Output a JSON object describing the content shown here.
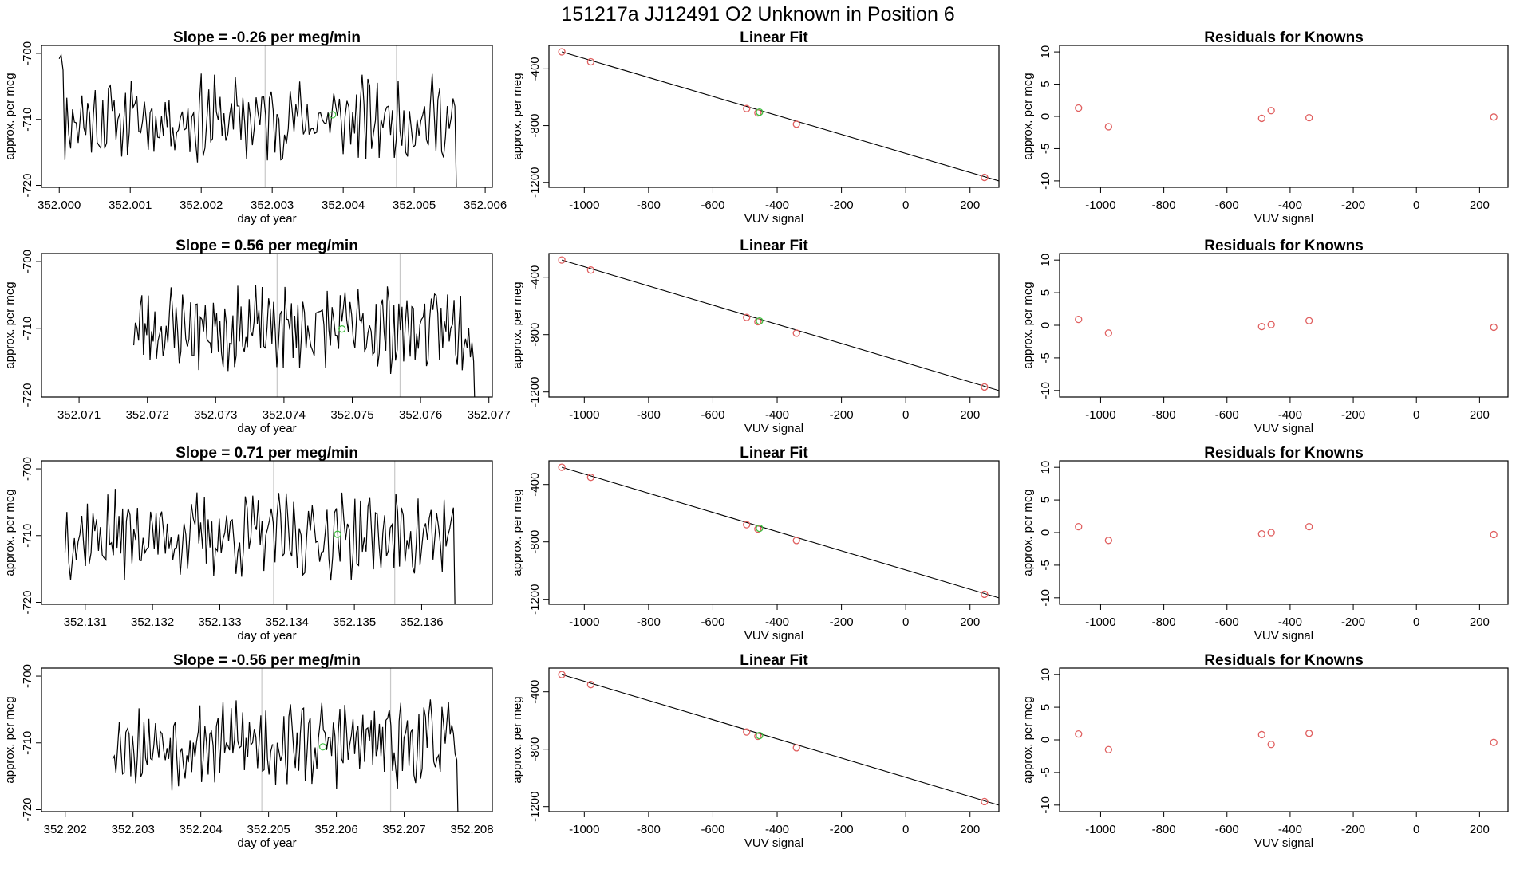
{
  "title": "151217a      JJ12491    O2 Unknown in Position  6",
  "colors": {
    "line": "#000000",
    "marker": "#e06060",
    "highlight": "#40c040",
    "guide": "#c8c8c8"
  },
  "chart_data": [
    {
      "type": "line",
      "title": "Slope =  -0.26  per meg/min",
      "xlabel": "day of year",
      "ylabel": "approx. per meg",
      "xlim": [
        351.99975,
        352.0061
      ],
      "ylim": [
        -720.3,
        -698.8
      ],
      "xticks": [
        352.0,
        352.001,
        352.002,
        352.003,
        352.004,
        352.005,
        352.006
      ],
      "xtick_labels": [
        "352.000",
        "352.001",
        "352.002",
        "352.003",
        "352.004",
        "352.005",
        "352.006"
      ],
      "yticks": [
        -720,
        -710,
        -700
      ],
      "ytick_labels": [
        "-720",
        "-710",
        "-700"
      ],
      "series_start": 352.0,
      "series_end": 352.0056,
      "vlines": [
        352.0029,
        352.00475
      ],
      "highlight": {
        "x": 352.00385,
        "y": -709.3
      },
      "seed": 11
    },
    {
      "type": "line",
      "title": "Slope =  0.56  per meg/min",
      "xlabel": "day of year",
      "ylabel": "approx. per meg",
      "xlim": [
        352.07045,
        352.07705
      ],
      "ylim": [
        -720.3,
        -698.8
      ],
      "xticks": [
        352.071,
        352.072,
        352.073,
        352.074,
        352.075,
        352.076,
        352.077
      ],
      "xtick_labels": [
        "352.071",
        "352.072",
        "352.073",
        "352.074",
        "352.075",
        "352.076",
        "352.077"
      ],
      "yticks": [
        -720,
        -710,
        -700
      ],
      "ytick_labels": [
        "-720",
        "-710",
        "-700"
      ],
      "series_start": 352.0718,
      "series_end": 352.0768,
      "vlines": [
        352.0739,
        352.0757
      ],
      "highlight": {
        "x": 352.07485,
        "y": -710.1
      },
      "seed": 23
    },
    {
      "type": "line",
      "title": "Slope =  0.71  per meg/min",
      "xlabel": "day of year",
      "ylabel": "approx. per meg",
      "xlim": [
        352.13035,
        352.13705
      ],
      "ylim": [
        -720.3,
        -698.8
      ],
      "xticks": [
        352.131,
        352.132,
        352.133,
        352.134,
        352.135,
        352.136
      ],
      "xtick_labels": [
        "352.131",
        "352.132",
        "352.133",
        "352.134",
        "352.135",
        "352.136"
      ],
      "yticks": [
        -720,
        -710,
        -700
      ],
      "ytick_labels": [
        "-720",
        "-710",
        "-700"
      ],
      "series_start": 352.1307,
      "series_end": 352.1365,
      "vlines": [
        352.1338,
        352.1356
      ],
      "highlight": {
        "x": 352.13475,
        "y": -709.8
      },
      "seed": 37
    },
    {
      "type": "line",
      "title": "Slope =  -0.56  per meg/min",
      "xlabel": "day of year",
      "ylabel": "approx. per meg",
      "xlim": [
        352.20165,
        352.2083
      ],
      "ylim": [
        -720.3,
        -698.8
      ],
      "xticks": [
        352.202,
        352.203,
        352.204,
        352.205,
        352.206,
        352.207,
        352.208
      ],
      "xtick_labels": [
        "352.202",
        "352.203",
        "352.204",
        "352.205",
        "352.206",
        "352.207",
        "352.208"
      ],
      "yticks": [
        -720,
        -710,
        -700
      ],
      "ytick_labels": [
        "-720",
        "-710",
        "-700"
      ],
      "series_start": 352.2027,
      "series_end": 352.2078,
      "vlines": [
        352.2049,
        352.2068
      ],
      "highlight": {
        "x": 352.2058,
        "y": -710.6
      },
      "seed": 53
    },
    {
      "type": "scatter",
      "title": "Linear Fit",
      "xlabel": "VUV signal",
      "ylabel": "approx. per meg",
      "xlim": [
        -1110,
        290
      ],
      "ylim": [
        -1235,
        -235
      ],
      "xticks": [
        -1000,
        -800,
        -600,
        -400,
        -200,
        0,
        200
      ],
      "xtick_labels": [
        "-1000",
        "-800",
        "-600",
        "-400",
        "-200",
        "0",
        "200"
      ],
      "yticks": [
        -1200,
        -800,
        -400
      ],
      "ytick_labels": [
        "-1200",
        "-800",
        "-400"
      ],
      "points": [
        {
          "x": -1070,
          "y": -280
        },
        {
          "x": -980,
          "y": -350
        },
        {
          "x": -495,
          "y": -680
        },
        {
          "x": -460,
          "y": -710
        },
        {
          "x": -340,
          "y": -790
        },
        {
          "x": 245,
          "y": -1165
        }
      ],
      "highlight": {
        "x": -455,
        "y": -705
      },
      "fit": {
        "x": [
          -1070,
          290
        ],
        "y": [
          -280,
          -1190
        ]
      }
    },
    {
      "type": "scatter",
      "title": "Linear Fit",
      "xlabel": "VUV signal",
      "ylabel": "approx. per meg",
      "xlim": [
        -1110,
        290
      ],
      "ylim": [
        -1235,
        -235
      ],
      "xticks": [
        -1000,
        -800,
        -600,
        -400,
        -200,
        0,
        200
      ],
      "xtick_labels": [
        "-1000",
        "-800",
        "-600",
        "-400",
        "-200",
        "0",
        "200"
      ],
      "yticks": [
        -1200,
        -800,
        -400
      ],
      "ytick_labels": [
        "-1200",
        "-800",
        "-400"
      ],
      "points": [
        {
          "x": -1070,
          "y": -280
        },
        {
          "x": -980,
          "y": -350
        },
        {
          "x": -495,
          "y": -680
        },
        {
          "x": -460,
          "y": -710
        },
        {
          "x": -340,
          "y": -790
        },
        {
          "x": 245,
          "y": -1165
        }
      ],
      "highlight": {
        "x": -455,
        "y": -705
      },
      "fit": {
        "x": [
          -1070,
          290
        ],
        "y": [
          -280,
          -1190
        ]
      }
    },
    {
      "type": "scatter",
      "title": "Linear Fit",
      "xlabel": "VUV signal",
      "ylabel": "approx. per meg",
      "xlim": [
        -1110,
        290
      ],
      "ylim": [
        -1235,
        -235
      ],
      "xticks": [
        -1000,
        -800,
        -600,
        -400,
        -200,
        0,
        200
      ],
      "xtick_labels": [
        "-1000",
        "-800",
        "-600",
        "-400",
        "-200",
        "0",
        "200"
      ],
      "yticks": [
        -1200,
        -800,
        -400
      ],
      "ytick_labels": [
        "-1200",
        "-800",
        "-400"
      ],
      "points": [
        {
          "x": -1070,
          "y": -280
        },
        {
          "x": -980,
          "y": -350
        },
        {
          "x": -495,
          "y": -680
        },
        {
          "x": -460,
          "y": -710
        },
        {
          "x": -340,
          "y": -790
        },
        {
          "x": 245,
          "y": -1165
        }
      ],
      "highlight": {
        "x": -455,
        "y": -705
      },
      "fit": {
        "x": [
          -1070,
          290
        ],
        "y": [
          -280,
          -1190
        ]
      }
    },
    {
      "type": "scatter",
      "title": "Linear Fit",
      "xlabel": "VUV signal",
      "ylabel": "approx. per meg",
      "xlim": [
        -1110,
        290
      ],
      "ylim": [
        -1235,
        -235
      ],
      "xticks": [
        -1000,
        -800,
        -600,
        -400,
        -200,
        0,
        200
      ],
      "xtick_labels": [
        "-1000",
        "-800",
        "-600",
        "-400",
        "-200",
        "0",
        "200"
      ],
      "yticks": [
        -1200,
        -800,
        -400
      ],
      "ytick_labels": [
        "-1200",
        "-800",
        "-400"
      ],
      "points": [
        {
          "x": -1070,
          "y": -280
        },
        {
          "x": -980,
          "y": -350
        },
        {
          "x": -495,
          "y": -680
        },
        {
          "x": -460,
          "y": -710
        },
        {
          "x": -340,
          "y": -790
        },
        {
          "x": 245,
          "y": -1165
        }
      ],
      "highlight": {
        "x": -455,
        "y": -705
      },
      "fit": {
        "x": [
          -1070,
          290
        ],
        "y": [
          -280,
          -1190
        ]
      }
    },
    {
      "type": "scatter",
      "title": "Residuals for Knowns",
      "xlabel": "VUV signal",
      "ylabel": "approx. per meg",
      "xlim": [
        -1130,
        290
      ],
      "ylim": [
        -11,
        11
      ],
      "xticks": [
        -1000,
        -800,
        -600,
        -400,
        -200,
        0,
        200
      ],
      "xtick_labels": [
        "-1000",
        "-800",
        "-600",
        "-400",
        "-200",
        "0",
        "200"
      ],
      "yticks": [
        -10,
        -5,
        0,
        5,
        10
      ],
      "ytick_labels": [
        "-10",
        "-5",
        "0",
        "5",
        "10"
      ],
      "points": [
        {
          "x": -1070,
          "y": 1.3
        },
        {
          "x": -975,
          "y": -1.6
        },
        {
          "x": -490,
          "y": -0.3
        },
        {
          "x": -460,
          "y": 0.9
        },
        {
          "x": -340,
          "y": -0.2
        },
        {
          "x": 245,
          "y": -0.1
        }
      ]
    },
    {
      "type": "scatter",
      "title": "Residuals for Knowns",
      "xlabel": "VUV signal",
      "ylabel": "approx. per meg",
      "xlim": [
        -1130,
        290
      ],
      "ylim": [
        -11,
        11
      ],
      "xticks": [
        -1000,
        -800,
        -600,
        -400,
        -200,
        0,
        200
      ],
      "xtick_labels": [
        "-1000",
        "-800",
        "-600",
        "-400",
        "-200",
        "0",
        "200"
      ],
      "yticks": [
        -10,
        -5,
        0,
        5,
        10
      ],
      "ytick_labels": [
        "-10",
        "-5",
        "0",
        "5",
        "10"
      ],
      "points": [
        {
          "x": -1070,
          "y": 0.9
        },
        {
          "x": -975,
          "y": -1.2
        },
        {
          "x": -490,
          "y": -0.2
        },
        {
          "x": -460,
          "y": 0.1
        },
        {
          "x": -340,
          "y": 0.7
        },
        {
          "x": 245,
          "y": -0.3
        }
      ]
    },
    {
      "type": "scatter",
      "title": "Residuals for Knowns",
      "xlabel": "VUV signal",
      "ylabel": "approx. per meg",
      "xlim": [
        -1130,
        290
      ],
      "ylim": [
        -11,
        11
      ],
      "xticks": [
        -1000,
        -800,
        -600,
        -400,
        -200,
        0,
        200
      ],
      "xtick_labels": [
        "-1000",
        "-800",
        "-600",
        "-400",
        "-200",
        "0",
        "200"
      ],
      "yticks": [
        -10,
        -5,
        0,
        5,
        10
      ],
      "ytick_labels": [
        "-10",
        "-5",
        "0",
        "5",
        "10"
      ],
      "points": [
        {
          "x": -1070,
          "y": 0.9
        },
        {
          "x": -975,
          "y": -1.2
        },
        {
          "x": -490,
          "y": -0.2
        },
        {
          "x": -460,
          "y": 0.0
        },
        {
          "x": -340,
          "y": 0.9
        },
        {
          "x": 245,
          "y": -0.3
        }
      ]
    },
    {
      "type": "scatter",
      "title": "Residuals for Knowns",
      "xlabel": "VUV signal",
      "ylabel": "approx. per meg",
      "xlim": [
        -1130,
        290
      ],
      "ylim": [
        -11,
        11
      ],
      "xticks": [
        -1000,
        -800,
        -600,
        -400,
        -200,
        0,
        200
      ],
      "xtick_labels": [
        "-1000",
        "-800",
        "-600",
        "-400",
        "-200",
        "0",
        "200"
      ],
      "yticks": [
        -10,
        -5,
        0,
        5,
        10
      ],
      "ytick_labels": [
        "-10",
        "-5",
        "0",
        "5",
        "10"
      ],
      "points": [
        {
          "x": -1070,
          "y": 0.9
        },
        {
          "x": -975,
          "y": -1.5
        },
        {
          "x": -490,
          "y": 0.8
        },
        {
          "x": -460,
          "y": -0.7
        },
        {
          "x": -340,
          "y": 1.0
        },
        {
          "x": 245,
          "y": -0.4
        }
      ]
    }
  ]
}
